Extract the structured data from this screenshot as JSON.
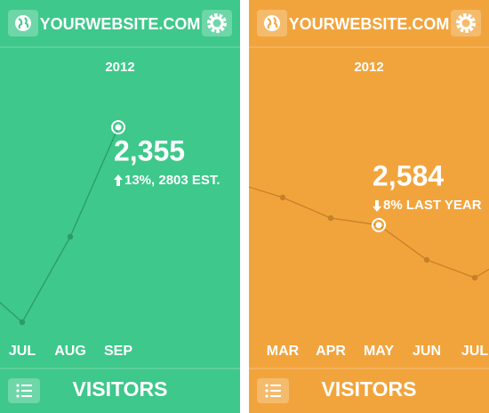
{
  "screens": [
    {
      "header": {
        "title": "YOURWEBSITE.COM"
      },
      "year": "2012",
      "chart": {
        "categories": [
          null,
          "JUL",
          "AUG",
          "SEP"
        ],
        "values": [
          1123,
          778,
          1469,
          2355
        ],
        "value_labels": [
          null,
          null,
          null,
          "2,355"
        ],
        "note": "13%, 2803 EST.",
        "trend": "up",
        "background": "#3ec88b",
        "color": "#2c9b66",
        "label_color": "#2a9a62"
      },
      "footer": {
        "title": "VISITORS"
      }
    },
    {
      "header": {
        "title": "YOURWEBSITE.COM"
      },
      "year": "2012",
      "chart": {
        "categories": [
          null,
          "MAR",
          "APR",
          "MAY",
          "JUN",
          "JUL",
          null
        ],
        "values": [
          3154,
          2953,
          2678,
          2584,
          2119,
          1880,
          2261
        ],
        "value_labels": [
          null,
          null,
          null,
          "2,584",
          null,
          null,
          null
        ],
        "note": "8% LAST YEAR",
        "trend": "down",
        "background": "#f2a43c",
        "color": "#c5812a",
        "label_color": "#c47d22"
      },
      "footer": {
        "title": "VISITORS"
      }
    }
  ]
}
